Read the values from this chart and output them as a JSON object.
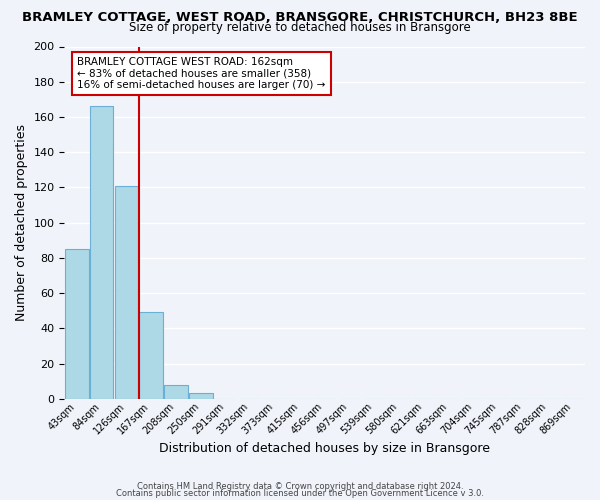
{
  "title": "BRAMLEY COTTAGE, WEST ROAD, BRANSGORE, CHRISTCHURCH, BH23 8BE",
  "subtitle": "Size of property relative to detached houses in Bransgore",
  "xlabel": "Distribution of detached houses by size in Bransgore",
  "ylabel": "Number of detached properties",
  "bar_color": "#add8e6",
  "bar_edge_color": "#6baed6",
  "background_color": "#f0f4fa",
  "grid_color": "#ffffff",
  "bins": [
    "43sqm",
    "84sqm",
    "126sqm",
    "167sqm",
    "208sqm",
    "250sqm",
    "291sqm",
    "332sqm",
    "373sqm",
    "415sqm",
    "456sqm",
    "497sqm",
    "539sqm",
    "580sqm",
    "621sqm",
    "663sqm",
    "704sqm",
    "745sqm",
    "787sqm",
    "828sqm",
    "869sqm"
  ],
  "values": [
    85,
    166,
    121,
    49,
    8,
    3,
    0,
    0,
    0,
    0,
    0,
    0,
    0,
    0,
    0,
    0,
    0,
    0,
    0,
    0,
    0
  ],
  "ylim": [
    0,
    200
  ],
  "yticks": [
    0,
    20,
    40,
    60,
    80,
    100,
    120,
    140,
    160,
    180,
    200
  ],
  "property_line_x": 3,
  "property_line_color": "#cc0000",
  "annotation_title": "BRAMLEY COTTAGE WEST ROAD: 162sqm",
  "annotation_line1": "← 83% of detached houses are smaller (358)",
  "annotation_line2": "16% of semi-detached houses are larger (70) →",
  "annotation_box_color": "#ffffff",
  "annotation_box_edge_color": "#cc0000",
  "footer1": "Contains HM Land Registry data © Crown copyright and database right 2024.",
  "footer2": "Contains public sector information licensed under the Open Government Licence v 3.0."
}
